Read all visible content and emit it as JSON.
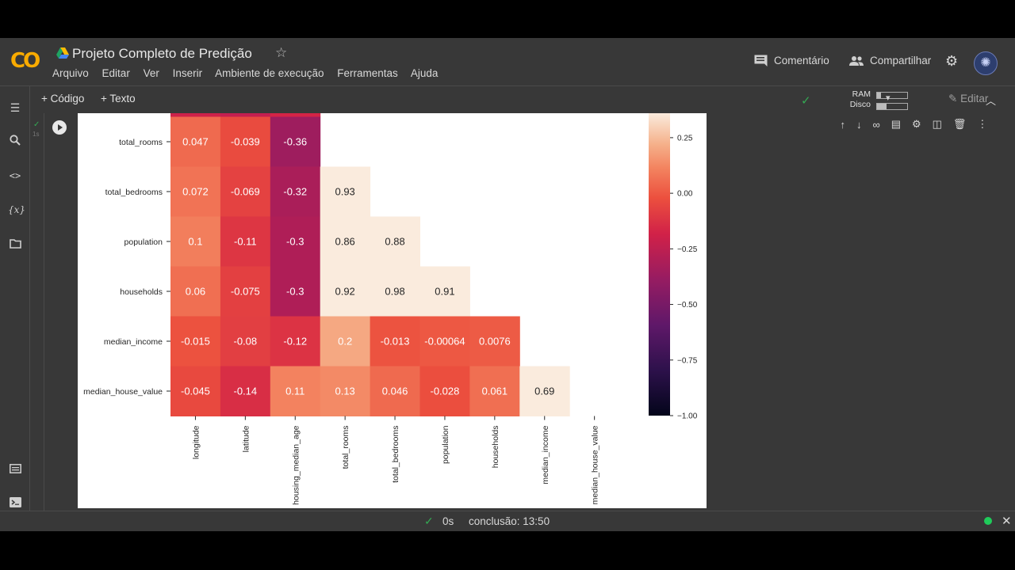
{
  "header": {
    "logo": "CO",
    "title": "Projeto Completo de Predição",
    "menu": [
      "Arquivo",
      "Editar",
      "Ver",
      "Inserir",
      "Ambiente de execução",
      "Ferramentas",
      "Ajuda"
    ],
    "comment_label": "Comentário",
    "share_label": "Compartilhar"
  },
  "toolbar": {
    "add_code": "Código",
    "add_text": "Texto",
    "ram_label": "RAM",
    "disk_label": "Disco",
    "edit_label": "Editar"
  },
  "cell": {
    "exec_time": "1s"
  },
  "status": {
    "time": "0s",
    "completion": "conclusão: 13:50"
  },
  "chart_data": {
    "type": "heatmap",
    "row_labels": [
      "total_rooms",
      "total_bedrooms",
      "population",
      "households",
      "median_income",
      "median_house_value"
    ],
    "col_labels": [
      "longitude",
      "latitude",
      "housing_median_age",
      "total_rooms",
      "total_bedrooms",
      "population",
      "households",
      "median_income",
      "median_house_value"
    ],
    "values": [
      [
        0.047,
        -0.039,
        -0.36,
        null,
        null,
        null,
        null,
        null,
        null
      ],
      [
        0.072,
        -0.069,
        -0.32,
        0.93,
        null,
        null,
        null,
        null,
        null
      ],
      [
        0.1,
        -0.11,
        -0.3,
        0.86,
        0.88,
        null,
        null,
        null,
        null
      ],
      [
        0.06,
        -0.075,
        -0.3,
        0.92,
        0.98,
        0.91,
        null,
        null,
        null
      ],
      [
        -0.015,
        -0.08,
        -0.12,
        0.2,
        -0.013,
        -0.00064,
        0.0076,
        null,
        null
      ],
      [
        -0.045,
        -0.14,
        0.11,
        0.13,
        0.046,
        -0.028,
        0.061,
        0.69,
        null
      ]
    ],
    "labels": [
      [
        "0.047",
        "-0.039",
        "-0.36",
        "",
        "",
        "",
        "",
        "",
        ""
      ],
      [
        "0.072",
        "-0.069",
        "-0.32",
        "0.93",
        "",
        "",
        "",
        "",
        ""
      ],
      [
        "0.1",
        "-0.11",
        "-0.3",
        "0.86",
        "0.88",
        "",
        "",
        "",
        ""
      ],
      [
        "0.06",
        "-0.075",
        "-0.3",
        "0.92",
        "0.98",
        "0.91",
        "",
        "",
        ""
      ],
      [
        "-0.015",
        "-0.08",
        "-0.12",
        "0.2",
        "-0.013",
        "-0.00064",
        "0.0076",
        "",
        ""
      ],
      [
        "-0.045",
        "-0.14",
        "0.11",
        "0.13",
        "0.046",
        "-0.028",
        "0.061",
        "0.69",
        ""
      ]
    ],
    "colorbar": {
      "range": [
        -1.0,
        0.36
      ],
      "ticks": [
        0.25,
        0.0,
        -0.25,
        -0.5,
        -0.75,
        -1.0
      ],
      "tick_labels": [
        "0.25",
        "0.00",
        "−0.25",
        "−0.50",
        "−0.75",
        "−1.00"
      ]
    },
    "colormap": "rocket",
    "colors": {
      "accent_green": "#34a853",
      "logo_orange": "#f9ab00"
    }
  }
}
